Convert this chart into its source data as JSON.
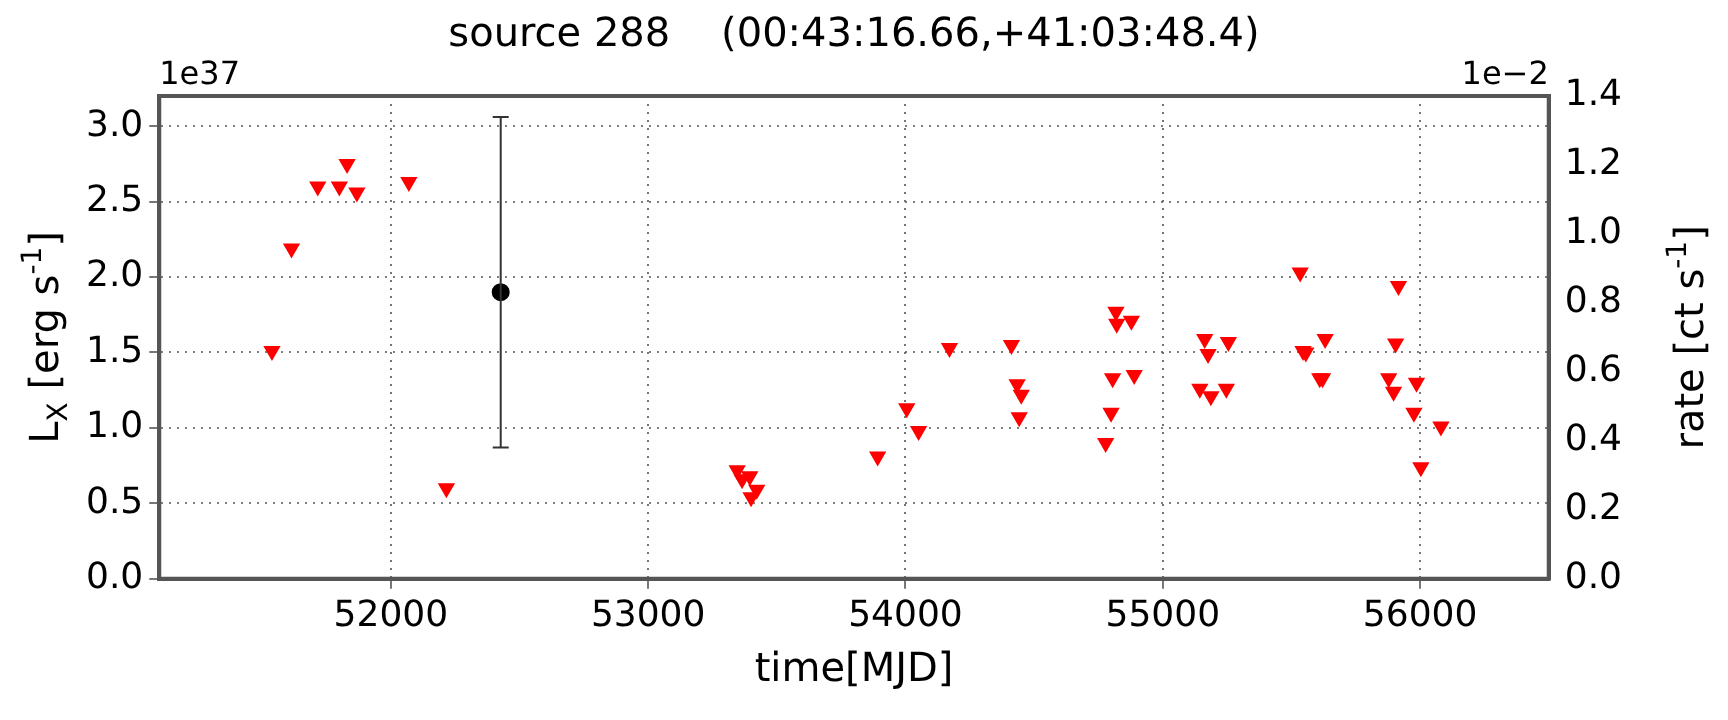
{
  "chart_data": {
    "type": "scatter",
    "title": "source 288    (00:43:16.66,+41:03:48.4)",
    "xlabel": "time[MJD]",
    "ylabel": "L$_{X}$ [erg s$^{-1}$]",
    "y2label": "rate [ct s$^{-1}$]",
    "annotations": [
      "1e37",
      "1e−2"
    ],
    "xlim": [
      51100,
      56500
    ],
    "xticks": [
      52000,
      53000,
      54000,
      55000,
      56000
    ],
    "ylim": [
      0,
      3.2
    ],
    "yticks": [
      {
        "value": 0,
        "label": "0.0"
      },
      0.5,
      {
        "value": 1,
        "label": "1.0"
      },
      1.5,
      {
        "value": 2,
        "label": "2.0"
      },
      2.5,
      {
        "value": 3,
        "label": "3.0"
      }
    ],
    "y2lim": [
      0,
      1.4
    ],
    "y2ticks": [
      {
        "value": 0,
        "label": "0.0"
      },
      0.2,
      0.4,
      0.6,
      0.8,
      {
        "value": 1,
        "label": "1.0"
      },
      1.2,
      1.4
    ],
    "grid": true,
    "series": [
      {
        "color": "#ff0000",
        "marker": "triangle",
        "x": [
          51538,
          51614,
          51716,
          51800,
          51830,
          51868,
          52070,
          52216,
          53346,
          53365,
          53395,
          53400,
          53422,
          53892,
          54005,
          54051,
          54171,
          54412,
          54434,
          54450,
          54442,
          54778,
          54799,
          54805,
          54818,
          54821,
          54878,
          54889,
          55144,
          55163,
          55176,
          55187,
          55247,
          55255,
          55534,
          55545,
          55556,
          55610,
          55621,
          55631,
          55878,
          55897,
          55905,
          55916,
          55976,
          55986,
          56003,
          56081
        ],
        "values": [
          1.51,
          2.19,
          2.6,
          2.6,
          2.75,
          2.56,
          2.63,
          0.6,
          0.72,
          0.66,
          0.68,
          0.54,
          0.59,
          0.81,
          1.13,
          0.98,
          1.53,
          1.55,
          1.29,
          1.22,
          1.07,
          0.9,
          1.1,
          1.33,
          1.77,
          1.69,
          1.71,
          1.35,
          1.26,
          1.59,
          1.49,
          1.21,
          1.26,
          1.57,
          2.03,
          1.51,
          1.5,
          1.33,
          1.33,
          1.59,
          1.33,
          1.24,
          1.56,
          1.94,
          1.1,
          1.3,
          0.74,
          1.01
        ]
      },
      {
        "color": "#000000",
        "marker": "circle",
        "x": [
          52427
        ],
        "values": [
          1.9
        ],
        "errors": [
          [
            0.87,
            3.06
          ]
        ]
      }
    ]
  }
}
